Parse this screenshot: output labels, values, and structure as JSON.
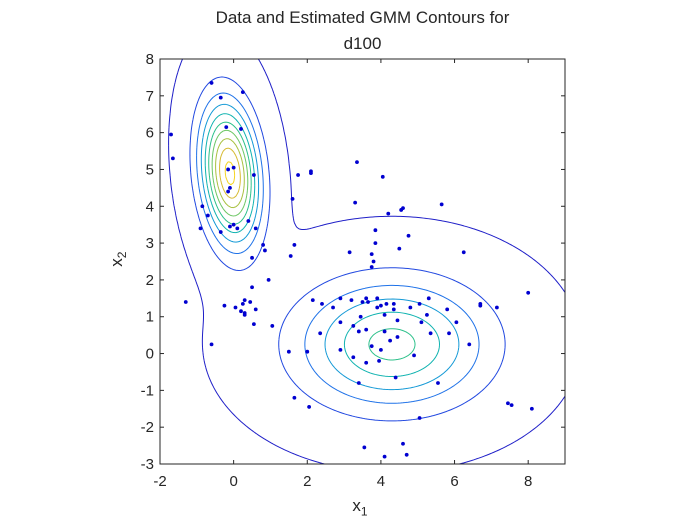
{
  "chart_data": {
    "type": "scatter",
    "title_line1": "Data and Estimated GMM Contours for",
    "title_line2": "d100",
    "xlabel": "x",
    "xlabel_sub": "1",
    "ylabel": "x",
    "ylabel_sub": "2",
    "xlim": [
      -2,
      9
    ],
    "ylim": [
      -3,
      8
    ],
    "xticks": [
      -2,
      0,
      2,
      4,
      6,
      8
    ],
    "yticks": [
      -3,
      -2,
      -1,
      0,
      1,
      2,
      3,
      4,
      5,
      6,
      7,
      8
    ],
    "grid": false,
    "series": [
      {
        "values": [
          [
            -1.7,
            5.95
          ],
          [
            -1.65,
            5.3
          ],
          [
            -0.9,
            3.4
          ],
          [
            -0.85,
            4.0
          ],
          [
            -0.7,
            3.75
          ],
          [
            -0.6,
            7.35
          ],
          [
            -0.35,
            6.95
          ],
          [
            -0.35,
            3.3
          ],
          [
            -0.2,
            6.15
          ],
          [
            -0.1,
            4.5
          ],
          [
            -0.15,
            4.4
          ],
          [
            -0.15,
            5.0
          ],
          [
            -0.1,
            3.45
          ],
          [
            0.0,
            3.5
          ],
          [
            0.0,
            5.05
          ],
          [
            0.1,
            3.4
          ],
          [
            0.2,
            6.1
          ],
          [
            0.25,
            7.1
          ],
          [
            0.4,
            3.6
          ],
          [
            0.55,
            4.85
          ],
          [
            0.6,
            3.4
          ],
          [
            0.8,
            2.95
          ],
          [
            0.85,
            2.8
          ],
          [
            0.95,
            2.0
          ],
          [
            0.5,
            2.6
          ],
          [
            0.5,
            1.8
          ],
          [
            0.45,
            1.4
          ],
          [
            0.6,
            1.2
          ],
          [
            0.3,
            1.45
          ],
          [
            0.25,
            1.35
          ],
          [
            0.2,
            1.15
          ],
          [
            0.3,
            1.05
          ],
          [
            0.05,
            1.25
          ],
          [
            0.55,
            0.8
          ],
          [
            -0.25,
            1.3
          ],
          [
            -0.6,
            0.25
          ],
          [
            -1.3,
            1.4
          ],
          [
            0.3,
            1.1
          ],
          [
            1.05,
            0.75
          ],
          [
            1.55,
            2.65
          ],
          [
            1.6,
            4.2
          ],
          [
            1.65,
            2.95
          ],
          [
            1.75,
            4.85
          ],
          [
            2.1,
            4.95
          ],
          [
            2.1,
            4.9
          ],
          [
            1.5,
            0.05
          ],
          [
            1.65,
            -1.2
          ],
          [
            2.05,
            -1.45
          ],
          [
            2.0,
            0.05
          ],
          [
            2.15,
            1.45
          ],
          [
            2.4,
            1.35
          ],
          [
            2.35,
            0.55
          ],
          [
            2.7,
            1.25
          ],
          [
            2.9,
            0.85
          ],
          [
            2.9,
            0.1
          ],
          [
            3.15,
            2.75
          ],
          [
            3.2,
            1.45
          ],
          [
            3.25,
            0.75
          ],
          [
            3.25,
            -0.1
          ],
          [
            3.35,
            5.2
          ],
          [
            3.3,
            4.1
          ],
          [
            3.4,
            0.6
          ],
          [
            3.45,
            1.0
          ],
          [
            3.5,
            1.4
          ],
          [
            3.4,
            -0.8
          ],
          [
            3.6,
            1.5
          ],
          [
            3.6,
            0.65
          ],
          [
            3.65,
            1.4
          ],
          [
            3.75,
            2.7
          ],
          [
            3.75,
            2.35
          ],
          [
            3.8,
            2.5
          ],
          [
            3.85,
            3.0
          ],
          [
            3.85,
            3.35
          ],
          [
            3.9,
            1.5
          ],
          [
            3.95,
            -0.2
          ],
          [
            4.0,
            1.3
          ],
          [
            4.05,
            4.8
          ],
          [
            4.1,
            0.6
          ],
          [
            4.1,
            1.05
          ],
          [
            4.15,
            1.35
          ],
          [
            4.2,
            3.8
          ],
          [
            4.25,
            0.35
          ],
          [
            4.35,
            1.2
          ],
          [
            4.35,
            1.35
          ],
          [
            4.45,
            0.9
          ],
          [
            4.4,
            -0.65
          ],
          [
            4.5,
            2.85
          ],
          [
            4.55,
            3.9
          ],
          [
            4.6,
            3.95
          ],
          [
            4.75,
            3.2
          ],
          [
            4.8,
            1.25
          ],
          [
            4.9,
            -0.05
          ],
          [
            5.05,
            1.35
          ],
          [
            5.1,
            0.85
          ],
          [
            5.25,
            1.05
          ],
          [
            5.35,
            0.55
          ],
          [
            5.55,
            -0.8
          ],
          [
            5.65,
            4.05
          ],
          [
            5.8,
            1.2
          ],
          [
            5.85,
            0.55
          ],
          [
            6.05,
            0.85
          ],
          [
            6.25,
            2.75
          ],
          [
            6.4,
            0.25
          ],
          [
            6.7,
            1.3
          ],
          [
            6.7,
            1.35
          ],
          [
            7.15,
            1.25
          ],
          [
            7.45,
            -1.35
          ],
          [
            7.55,
            -1.4
          ],
          [
            8.0,
            1.65
          ],
          [
            8.1,
            -1.5
          ],
          [
            5.05,
            -1.75
          ],
          [
            4.6,
            -2.45
          ],
          [
            4.7,
            -2.75
          ],
          [
            4.1,
            -2.8
          ],
          [
            3.55,
            -2.55
          ],
          [
            3.75,
            0.2
          ],
          [
            4.45,
            0.45
          ],
          [
            4.0,
            0.1
          ],
          [
            3.6,
            -0.25
          ],
          [
            3.9,
            1.25
          ],
          [
            5.3,
            1.5
          ],
          [
            2.9,
            1.5
          ]
        ]
      }
    ],
    "contours": {
      "type": "gaussian-mixture",
      "levels": 10,
      "components": [
        {
          "weight": 0.36,
          "mean": [
            -0.1,
            4.9
          ],
          "sd": [
            0.52,
            1.25
          ],
          "rho": -0.2
        },
        {
          "weight": 0.64,
          "mean": [
            4.3,
            0.25
          ],
          "sd": [
            1.7,
            1.15
          ],
          "rho": 0.0
        }
      ],
      "colormap": [
        "#1f1fc8",
        "#2148e0",
        "#1f72e8",
        "#1399d6",
        "#10b3b0",
        "#2cc08a",
        "#6cc663",
        "#a8c140",
        "#d7bb33",
        "#f5d420"
      ]
    },
    "colors": {
      "points": "#0000d0",
      "axis": "#262626",
      "background": "#ffffff"
    }
  }
}
